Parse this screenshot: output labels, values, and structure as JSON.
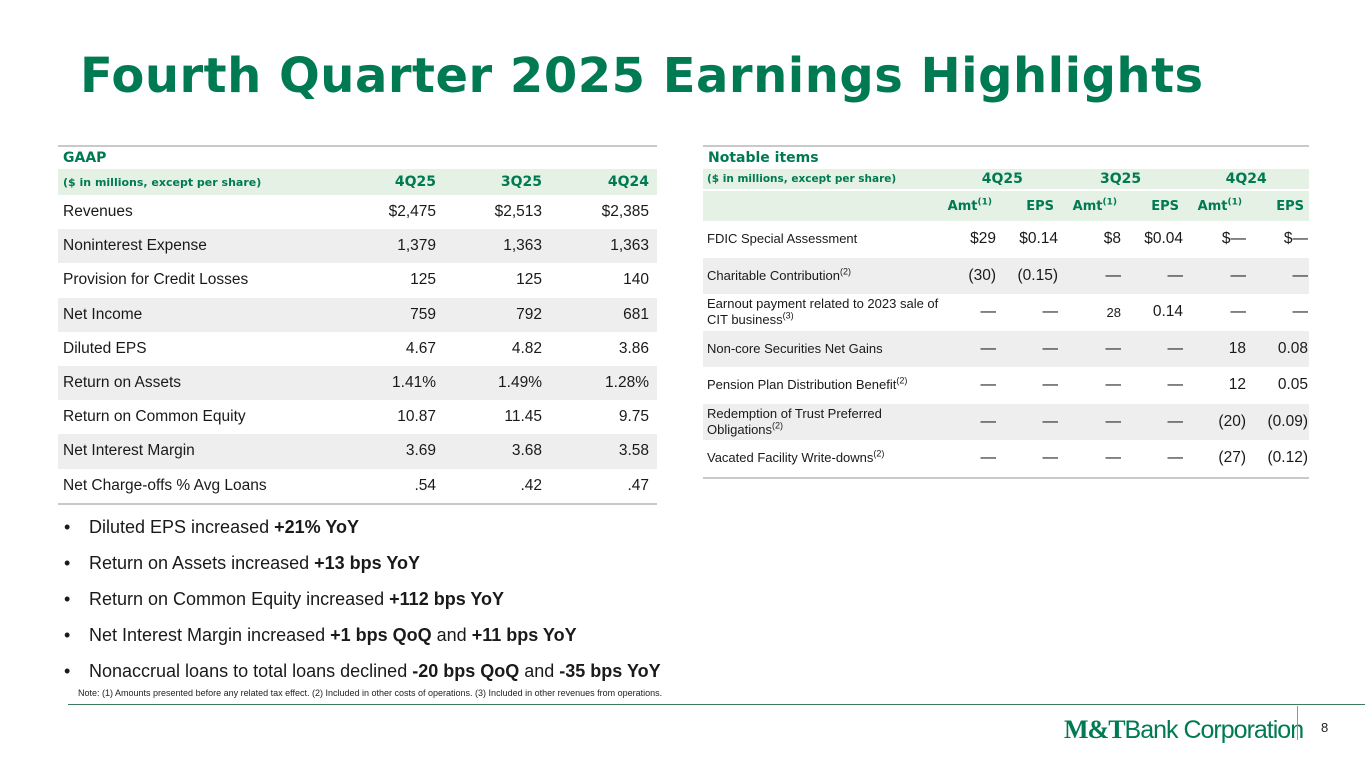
{
  "title": "Fourth Quarter 2025 Earnings Highlights",
  "gaap": {
    "section": "GAAP",
    "unit_label": "($ in millions, except per share)",
    "columns": [
      "4Q25",
      "3Q25",
      "4Q24"
    ],
    "rows": [
      {
        "label": "Revenues",
        "v": [
          "$2,475",
          "$2,513",
          "$2,385"
        ]
      },
      {
        "label": "Noninterest Expense",
        "v": [
          "1,379",
          "1,363",
          "1,363"
        ]
      },
      {
        "label": "Provision for Credit Losses",
        "v": [
          "125",
          "125",
          "140"
        ]
      },
      {
        "label": "Net Income",
        "v": [
          "759",
          "792",
          "681"
        ]
      },
      {
        "label": "Diluted EPS",
        "v": [
          "4.67",
          "4.82",
          "3.86"
        ]
      },
      {
        "label": "Return on Assets",
        "v": [
          "1.41%",
          "1.49%",
          "1.28%"
        ]
      },
      {
        "label": "Return on Common Equity",
        "v": [
          "10.87",
          "11.45",
          "9.75"
        ]
      },
      {
        "label": "Net Interest Margin",
        "v": [
          "3.69",
          "3.68",
          "3.58"
        ]
      },
      {
        "label": "Net Charge-offs % Avg Loans",
        "v": [
          ".54",
          ".42",
          ".47"
        ]
      }
    ]
  },
  "notable": {
    "section": "Notable items",
    "unit_label": "($ in millions, except per share)",
    "groups": [
      "4Q25",
      "3Q25",
      "4Q24"
    ],
    "amt_label": "Amt",
    "amt_sup": "(1)",
    "eps_label": "EPS",
    "rows": [
      {
        "label": "FDIC Special Assessment",
        "sup": "",
        "v": [
          "$29",
          "$0.14",
          "$8",
          "$0.04",
          "$—",
          "$—"
        ]
      },
      {
        "label": "Charitable Contribution",
        "sup": "(2)",
        "v": [
          "(30)",
          "(0.15)",
          "—",
          "—",
          "—",
          "—"
        ]
      },
      {
        "label": "Earnout payment related to 2023 sale of CIT business",
        "sup": "(3)",
        "v": [
          "—",
          "—",
          "28",
          "0.14",
          "—",
          "—"
        ]
      },
      {
        "label": "Non-core Securities Net Gains",
        "sup": "",
        "v": [
          "—",
          "—",
          "—",
          "—",
          "18",
          "0.08"
        ]
      },
      {
        "label": "Pension Plan Distribution Benefit",
        "sup": "(2)",
        "v": [
          "—",
          "—",
          "—",
          "—",
          "12",
          "0.05"
        ]
      },
      {
        "label": "Redemption of Trust Preferred Obligations",
        "sup": "(2)",
        "v": [
          "—",
          "—",
          "—",
          "—",
          "(20)",
          "(0.09)"
        ]
      },
      {
        "label": "Vacated Facility Write-downs",
        "sup": "(2)",
        "v": [
          "—",
          "—",
          "—",
          "—",
          "(27)",
          "(0.12)"
        ]
      }
    ]
  },
  "bullets": [
    {
      "text": "Diluted EPS increased ",
      "b1": "+21% YoY",
      "mid": "",
      "b2": ""
    },
    {
      "text": "Return on Assets increased ",
      "b1": "+13 bps YoY",
      "mid": "",
      "b2": ""
    },
    {
      "text": "Return on Common Equity increased ",
      "b1": "+112 bps YoY",
      "mid": "",
      "b2": ""
    },
    {
      "text": "Net Interest Margin increased ",
      "b1": "+1 bps QoQ",
      "mid": " and ",
      "b2": "+11 bps YoY"
    },
    {
      "text": "Nonaccrual loans to total loans declined ",
      "b1": "-20 bps QoQ",
      "mid": " and ",
      "b2": "-35 bps YoY"
    }
  ],
  "bullet_char": "•",
  "note": "Note: (1) Amounts presented before any related tax effect. (2) Included in other costs of operations. (3) Included in other revenues from operations.",
  "logo": {
    "mt": "M&T",
    "rest": "Bank Corporation"
  },
  "page_number": "8",
  "colors": {
    "brand_green": "#007a53",
    "header_bg": "#e4f1e4",
    "row_alt": "#eeeeee"
  }
}
